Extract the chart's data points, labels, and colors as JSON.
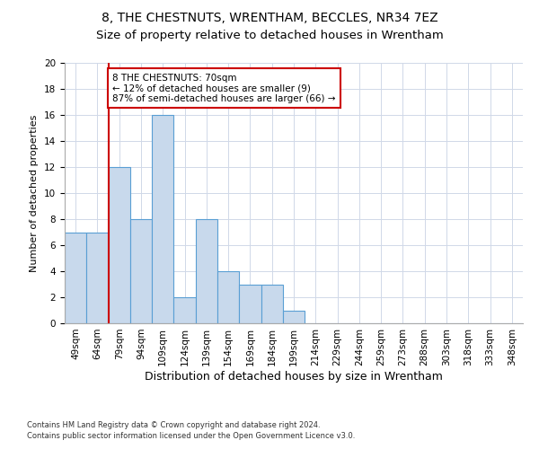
{
  "title1": "8, THE CHESTNUTS, WRENTHAM, BECCLES, NR34 7EZ",
  "title2": "Size of property relative to detached houses in Wrentham",
  "xlabel": "Distribution of detached houses by size in Wrentham",
  "ylabel": "Number of detached properties",
  "bar_labels": [
    "49sqm",
    "64sqm",
    "79sqm",
    "94sqm",
    "109sqm",
    "124sqm",
    "139sqm",
    "154sqm",
    "169sqm",
    "184sqm",
    "199sqm",
    "214sqm",
    "229sqm",
    "244sqm",
    "259sqm",
    "273sqm",
    "288sqm",
    "303sqm",
    "318sqm",
    "333sqm",
    "348sqm"
  ],
  "bar_values": [
    7,
    7,
    12,
    8,
    16,
    2,
    8,
    4,
    3,
    3,
    1,
    0,
    0,
    0,
    0,
    0,
    0,
    0,
    0,
    0,
    0
  ],
  "bar_color": "#c8d9ec",
  "bar_edge_color": "#5a9fd4",
  "red_line_x": 1.5,
  "annotation_text": "8 THE CHESTNUTS: 70sqm\n← 12% of detached houses are smaller (9)\n87% of semi-detached houses are larger (66) →",
  "annotation_box_color": "#ffffff",
  "annotation_box_edge": "#cc0000",
  "ylim": [
    0,
    20
  ],
  "yticks": [
    0,
    2,
    4,
    6,
    8,
    10,
    12,
    14,
    16,
    18,
    20
  ],
  "footnote1": "Contains HM Land Registry data © Crown copyright and database right 2024.",
  "footnote2": "Contains public sector information licensed under the Open Government Licence v3.0.",
  "background_color": "#ffffff",
  "grid_color": "#d0d8e8",
  "title1_fontsize": 10,
  "title2_fontsize": 9.5,
  "xlabel_fontsize": 9,
  "ylabel_fontsize": 8,
  "tick_fontsize": 7.5,
  "footnote_fontsize": 6,
  "annotation_fontsize": 7.5
}
